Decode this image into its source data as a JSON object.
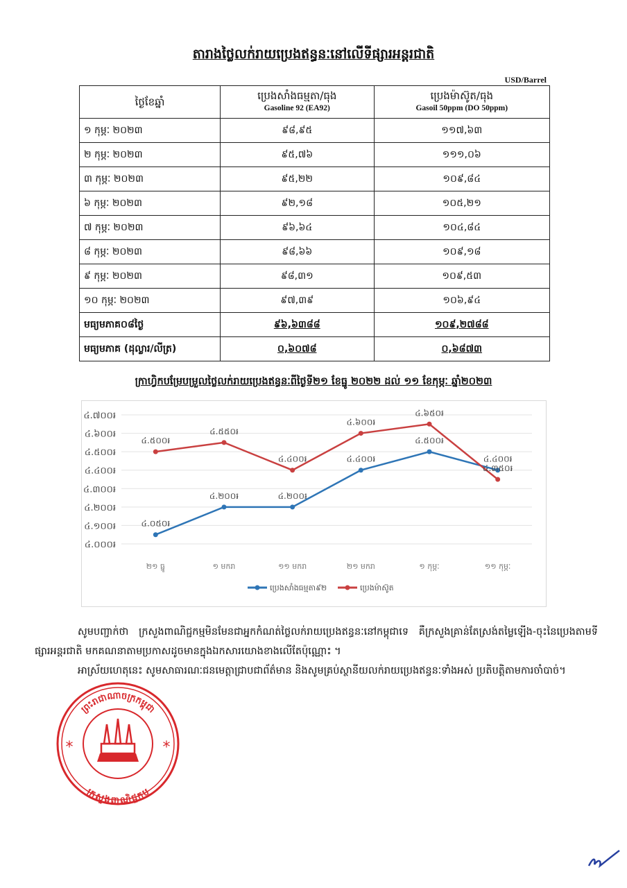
{
  "title": "តារាងថ្លៃលក់រាយប្រេងឥន្ធនៈនៅលើទីផ្សារអន្តរជាតិ",
  "unit": "USD/Barrel",
  "table": {
    "headers": [
      {
        "km": "ថ្ងៃខែឆ្នាំ",
        "en": ""
      },
      {
        "km": "ប្រេងសាំងធម្មតា/ធុង",
        "en": "Gasoline 92 (EA92)"
      },
      {
        "km": "ប្រេងម៉ាស៊ូត/ធុង",
        "en": "Gasoil 50ppm (DO 50ppm)"
      }
    ],
    "rows": [
      [
        "១ កុម្ភៈ ២០២៣",
        "៩៨,៩៥",
        "១១៧,៦៣"
      ],
      [
        "២ កុម្ភៈ ២០២៣",
        "៩៥,៧៦",
        "១១១,០៦"
      ],
      [
        "៣ កុម្ភៈ ២០២៣",
        "៩៥,២២",
        "១០៩,៨៤"
      ],
      [
        "៦ កុម្ភៈ ២០២៣",
        "៩២,១៨",
        "១០៥,២១"
      ],
      [
        "៧ កុម្ភៈ ២០២៣",
        "៩៦,៦៤",
        "១០៤,៨៤"
      ],
      [
        "៨ កុម្ភៈ ២០២៣",
        "៩៨,៦៦",
        "១០៩,១៨"
      ],
      [
        "៩ កុម្ភៈ ២០២៣",
        "៩៨,៣១",
        "១០៩,៥៣"
      ],
      [
        "១០ កុម្ភៈ ២០២៣",
        "៩៧,៣៩",
        "១០៦,៩៤"
      ]
    ],
    "averages": [
      [
        "មធ្យមភាគ០៨ថ្ងៃ",
        "៩៦,៦៣៨៨",
        "១០៩,២៧៨៨"
      ],
      [
        "មធ្យមភាគ (ដុល្លារ/លីត្រ)",
        "០,៦០៧៨",
        "០,៦៨៧៣"
      ]
    ]
  },
  "chart_title": "ក្រាហ្វិកបម្រែបម្រួលថ្លៃលក់រាយប្រេងឥន្ធនៈពីថ្ងៃទី២១ ខែធ្នូ ២០២២ ដល់ ១១ ខែកុម្ភៈ ឆ្នាំ២០២៣",
  "chart_data": {
    "type": "line",
    "title": "ក្រាហ្វិកបម្រែបម្រួលថ្លៃលក់រាយប្រេងឥន្ធនៈពីថ្ងៃទី២១ ខែធ្នូ ២០២២ ដល់ ១១ ខែកុម្ភៈ ឆ្នាំ២០២៣",
    "categories": [
      "២១ ធ្នូ",
      "១ មករា",
      "១១ មករា",
      "២១ មករា",
      "១ កុម្ភៈ",
      "១១ កុម្ភៈ"
    ],
    "ylim": [
      4000,
      4700
    ],
    "yticks": [
      4000,
      4100,
      4200,
      4300,
      4400,
      4500,
      4600,
      4700
    ],
    "ytick_labels": [
      "៤.០០០៛",
      "៤.១០០៛",
      "៤.២០០៛",
      "៤.៣០០៛",
      "៤.៤០០៛",
      "៤.៥០០៛",
      "៤.៦០០៛",
      "៤.៧០០៛"
    ],
    "grid": true,
    "legend_position": "bottom",
    "series": [
      {
        "name": "ប្រេងសាំងធម្មតា៩២",
        "color": "#2e75b6",
        "values": [
          4050,
          4200,
          4200,
          4400,
          4500,
          4400
        ],
        "labels": [
          "៤.០៥០៛",
          "៤.២០០៛",
          "៤.២០០៛",
          "៤.៤០០៛",
          "៤.៥០០៛",
          "៤.៤០០៛"
        ]
      },
      {
        "name": "ប្រេងម៉ាស៊ូត",
        "color": "#c94040",
        "values": [
          4500,
          4550,
          4400,
          4600,
          4650,
          4350
        ],
        "labels": [
          "៤.៥០០៛",
          "៤.៥៥០៛",
          "៤.៤០០៛",
          "៤.៦០០៛",
          "៤.៦៥០៛",
          "៤.៣៥០៛"
        ]
      }
    ]
  },
  "paragraphs": [
    "សូមបញ្ជាក់ថា ក្រសួងពាណិជ្ជកម្មមិនមែនជាអ្នកកំណត់ថ្លៃលក់រាយប្រេងឥន្ធនៈនៅកម្ពុជាទេ គឺក្រសួងគ្រាន់តែស្រង់តម្លៃឡើង-ចុះនៃប្រេងតាមទីផ្សារអន្តរជាតិ មកគណនាតាមប្រកាសដូចមានក្នុងឯកសារយោងខាងលើតែប៉ុណ្ណោះ ។",
    "អាស្រ័យហេតុនេះ សូមសាធារណៈជនមេត្តាជ្រាបជាព័ត៌មាន និងសូមគ្រប់ស្ថានីយលក់រាយប្រេងឥន្ធនៈទាំងអស់ ប្រតិបត្តិតាមការចាំបាច់។"
  ],
  "seal": {
    "top_text": "ព្រះរាជាណាចក្រកម្ពុជា",
    "bottom_text": "ក្រសួងពាណិជ្ជកម្ម",
    "color": "#d8282c"
  }
}
